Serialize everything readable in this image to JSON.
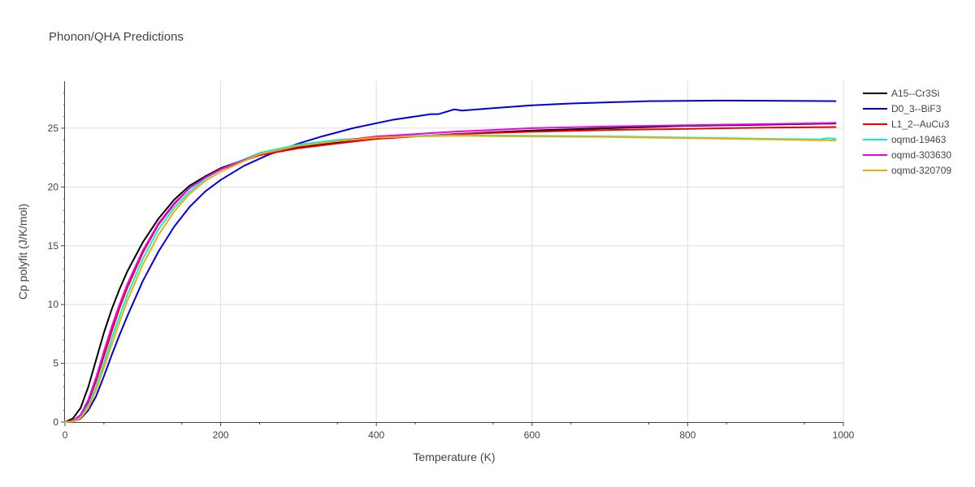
{
  "chart_data": {
    "type": "line",
    "title": "Phonon/QHA Predictions",
    "xlabel": "Temperature (K)",
    "ylabel": "Cp polyfit (J/K/mol)",
    "xlim": [
      0,
      1000
    ],
    "ylim": [
      0,
      29
    ],
    "xticks": [
      "0",
      "200",
      "400",
      "600",
      "800",
      "1000"
    ],
    "yticks": [
      "0",
      "5",
      "10",
      "15",
      "20",
      "25"
    ],
    "grid": true,
    "legend_position": "right",
    "series": [
      {
        "name": "A15--Cr3Si",
        "color": "#000000",
        "x": [
          0,
          10,
          20,
          30,
          40,
          50,
          60,
          70,
          80,
          100,
          120,
          140,
          160,
          180,
          200,
          250,
          300,
          350,
          400,
          500,
          600,
          700,
          800,
          900,
          990
        ],
        "y": [
          0,
          0.3,
          1.2,
          3.0,
          5.3,
          7.6,
          9.6,
          11.3,
          12.8,
          15.3,
          17.3,
          18.9,
          20.1,
          20.9,
          21.6,
          22.8,
          23.4,
          23.8,
          24.1,
          24.5,
          24.8,
          25.0,
          25.2,
          25.3,
          25.4
        ]
      },
      {
        "name": "D0_3--BiF3",
        "color": "#0000dd",
        "x": [
          0,
          10,
          20,
          30,
          40,
          50,
          60,
          70,
          80,
          100,
          120,
          140,
          160,
          180,
          200,
          230,
          260,
          300,
          330,
          370,
          420,
          470,
          480,
          500,
          510,
          550,
          600,
          650,
          750,
          850,
          990
        ],
        "y": [
          0,
          0.05,
          0.3,
          1.0,
          2.2,
          3.9,
          5.7,
          7.4,
          9.0,
          12.0,
          14.5,
          16.6,
          18.3,
          19.6,
          20.6,
          21.8,
          22.7,
          23.7,
          24.3,
          25.0,
          25.7,
          26.2,
          26.2,
          26.6,
          26.5,
          26.7,
          26.95,
          27.1,
          27.3,
          27.35,
          27.3
        ]
      },
      {
        "name": "L1_2--AuCu3",
        "color": "#ee0000",
        "x": [
          0,
          10,
          20,
          30,
          40,
          50,
          60,
          70,
          80,
          100,
          120,
          140,
          160,
          180,
          200,
          250,
          300,
          350,
          400,
          500,
          600,
          700,
          800,
          900,
          990
        ],
        "y": [
          0,
          0.1,
          0.6,
          1.7,
          3.5,
          5.6,
          7.7,
          9.7,
          11.4,
          14.4,
          16.8,
          18.5,
          19.9,
          20.8,
          21.5,
          22.7,
          23.3,
          23.7,
          24.1,
          24.5,
          24.7,
          24.85,
          24.95,
          25.05,
          25.1
        ]
      },
      {
        "name": "oqmd-19463",
        "color": "#00eeee",
        "x": [
          0,
          10,
          20,
          30,
          40,
          50,
          60,
          70,
          80,
          100,
          120,
          140,
          160,
          180,
          200,
          250,
          300,
          350,
          400,
          450,
          500,
          600,
          700,
          800,
          900,
          970,
          980,
          990
        ],
        "y": [
          0,
          0.05,
          0.4,
          1.4,
          3.0,
          5.0,
          7.1,
          9.0,
          10.8,
          13.9,
          16.4,
          18.2,
          19.6,
          20.7,
          21.5,
          22.9,
          23.6,
          24.0,
          24.2,
          24.35,
          24.4,
          24.35,
          24.3,
          24.2,
          24.1,
          24.05,
          24.15,
          24.1
        ]
      },
      {
        "name": "oqmd-303630",
        "color": "#ee00ee",
        "x": [
          0,
          10,
          20,
          30,
          40,
          50,
          60,
          70,
          80,
          100,
          120,
          140,
          160,
          180,
          200,
          250,
          300,
          350,
          400,
          500,
          600,
          700,
          800,
          900,
          990
        ],
        "y": [
          0,
          0.1,
          0.6,
          1.9,
          3.8,
          6.0,
          8.1,
          10.0,
          11.7,
          14.6,
          16.9,
          18.6,
          19.9,
          20.8,
          21.5,
          22.8,
          23.5,
          23.9,
          24.3,
          24.7,
          25.0,
          25.15,
          25.25,
          25.35,
          25.45
        ]
      },
      {
        "name": "oqmd-320709",
        "color": "#eeb000",
        "x": [
          0,
          10,
          20,
          30,
          40,
          50,
          60,
          70,
          80,
          100,
          120,
          140,
          160,
          180,
          200,
          250,
          300,
          350,
          400,
          450,
          500,
          600,
          700,
          800,
          900,
          990
        ],
        "y": [
          0,
          0.05,
          0.35,
          1.2,
          2.7,
          4.6,
          6.6,
          8.5,
          10.3,
          13.4,
          15.9,
          17.9,
          19.4,
          20.5,
          21.3,
          22.8,
          23.5,
          23.9,
          24.2,
          24.3,
          24.35,
          24.3,
          24.25,
          24.15,
          24.05,
          23.95
        ]
      }
    ]
  }
}
